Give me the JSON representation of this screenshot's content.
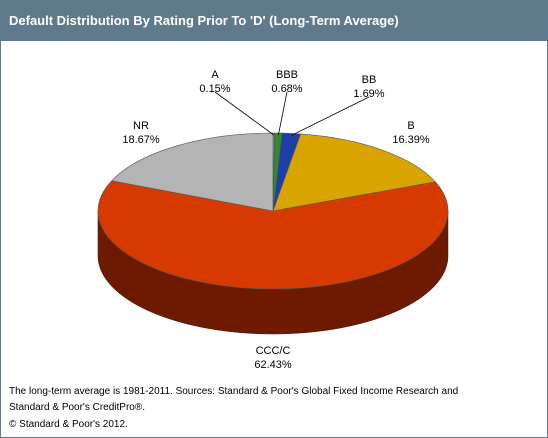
{
  "header": {
    "title": "Default Distribution By Rating Prior To 'D' (Long-Term Average)"
  },
  "chart_data": {
    "type": "pie",
    "title": "Default Distribution By Rating Prior To 'D' (Long-Term Average)",
    "unit": "%",
    "slices": [
      {
        "label": "A",
        "value_text": "0.15%",
        "value": 0.15,
        "color": "#cc9900",
        "dark": "#664d00"
      },
      {
        "label": "BBB",
        "value_text": "0.68%",
        "value": 0.68,
        "color": "#2e8b2e",
        "dark": "#144014"
      },
      {
        "label": "BB",
        "value_text": "1.69%",
        "value": 1.69,
        "color": "#1f3fa8",
        "dark": "#0d1c52"
      },
      {
        "label": "B",
        "value_text": "16.39%",
        "value": 16.39,
        "color": "#d9a300",
        "dark": "#6b5000"
      },
      {
        "label": "CCC/C",
        "value_text": "62.43%",
        "value": 62.43,
        "color": "#d63a00",
        "dark": "#6e1a00"
      },
      {
        "label": "NR",
        "value_text": "18.67%",
        "value": 18.67,
        "color": "#b4b4b4",
        "dark": "#5a5a5a"
      }
    ]
  },
  "footer": {
    "note_line1": "The long-term average is 1981-2011. Sources: Standard & Poor's Global Fixed Income Research and",
    "note_line2": "Standard & Poor's CreditPro®.",
    "copyright": "© Standard & Poor's 2012."
  }
}
